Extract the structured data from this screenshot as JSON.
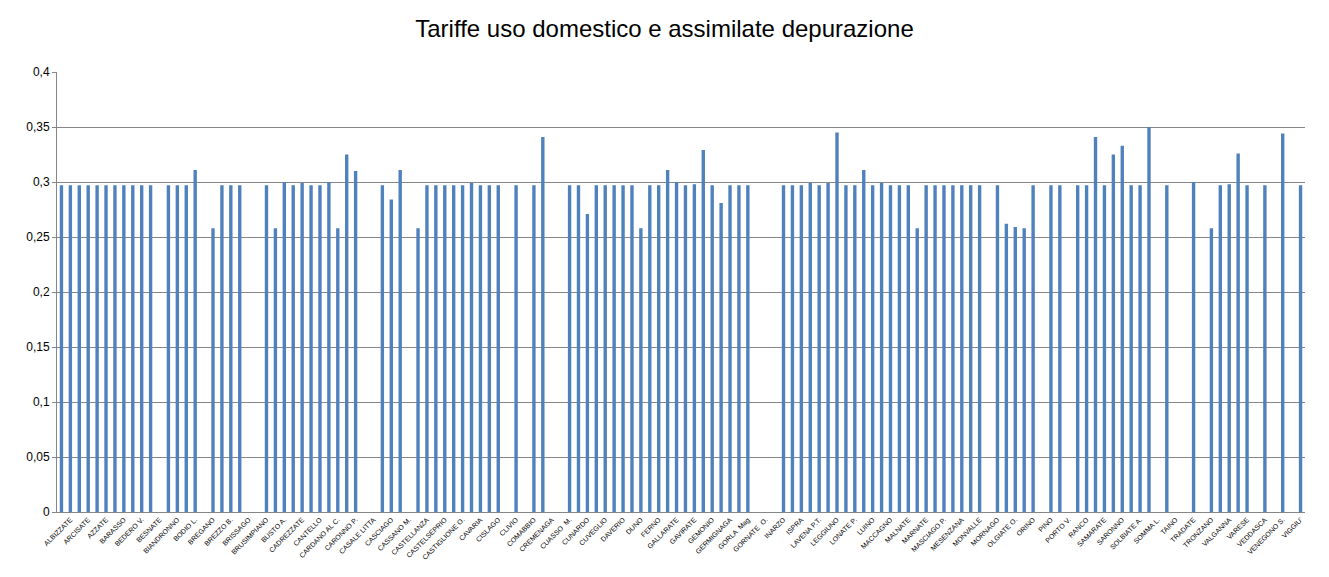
{
  "chart_data": {
    "type": "bar",
    "title": "Tariffe uso domestico e assimilate depurazione",
    "categories": [
      null,
      "ALBIZZATE",
      null,
      "ARCISATE",
      null,
      "AZZATE",
      null,
      "BARASSO",
      null,
      "BEDERO V.",
      null,
      "BESNATE",
      null,
      "BIANDRONNO",
      null,
      "BODIO L.",
      null,
      "BREGANO",
      null,
      "BREZZO B.",
      null,
      "BRISSAGO",
      null,
      "BRUSIMPIANO",
      null,
      "BUSTO A.",
      null,
      "CADREZZATE",
      null,
      "CANTELLO",
      null,
      "CARDANO AL C.",
      null,
      "CARONNO P.",
      null,
      "CASALE LITTA",
      null,
      "CASCIAGO",
      null,
      "CASSANO M.",
      null,
      "CASTELLANZA",
      null,
      "CASTELSEPRIO",
      null,
      "CASTIGLIONE O.",
      null,
      "CAVARIA",
      null,
      "CISLAGO",
      null,
      "CLIVIO",
      null,
      "COMABBIO",
      null,
      "CREMENAGA",
      null,
      "CUASSO  M.",
      null,
      "CUNARDO",
      null,
      "CUVEGLIO",
      null,
      "DAVERIO",
      null,
      "DUNO",
      null,
      "FERNO",
      null,
      "GALLARATE",
      null,
      "GAVIRATE",
      null,
      "GEMONIO",
      null,
      "GERMIGNAGA",
      null,
      "GORLA  Mag",
      null,
      "GORNATE  O.",
      null,
      "INARZO",
      null,
      "ISPRA",
      null,
      "LAVENA P.T.",
      null,
      "LEGGIUNO",
      null,
      "LONATE P.",
      null,
      "LUINO",
      null,
      "MACCAGNO",
      null,
      "MALNATE",
      null,
      "MARNATE",
      null,
      "MASCIAGO P.",
      null,
      "MESENZANA",
      null,
      "MONVALLE",
      null,
      "MORNAGO",
      null,
      "OLGIATE O.",
      null,
      "ORINO",
      null,
      "PINO",
      null,
      "PORTO V.",
      null,
      "RANCO",
      null,
      "SAMARATE",
      null,
      "SARONNO",
      null,
      "SOLBIATE A.",
      null,
      "SOMMA L.",
      null,
      "TAINO",
      null,
      "TRADATE",
      null,
      "TRONZANO",
      null,
      "VALGANNA",
      null,
      "VARESE",
      null,
      "VEDDASCA",
      null,
      "VENEGONO S.",
      null,
      "VIGGIU'"
    ],
    "values": [
      0.297,
      0.297,
      0.297,
      0.297,
      0.297,
      0.297,
      0.297,
      0.297,
      0.297,
      0.297,
      0.297,
      null,
      0.297,
      0.297,
      0.297,
      0.311,
      null,
      0.258,
      0.297,
      0.297,
      0.297,
      null,
      null,
      0.297,
      0.258,
      0.3,
      0.297,
      0.299,
      0.297,
      0.297,
      0.3,
      0.258,
      0.325,
      0.31,
      null,
      null,
      0.297,
      0.284,
      0.311,
      null,
      0.258,
      0.297,
      0.297,
      0.297,
      0.297,
      0.297,
      0.299,
      0.297,
      0.297,
      0.297,
      null,
      0.297,
      null,
      0.297,
      0.341,
      null,
      null,
      0.297,
      0.297,
      0.271,
      0.297,
      0.297,
      0.297,
      0.297,
      0.297,
      0.258,
      0.297,
      0.297,
      0.311,
      0.3,
      0.297,
      0.298,
      0.329,
      0.297,
      0.281,
      0.297,
      0.297,
      0.297,
      null,
      null,
      null,
      0.297,
      0.297,
      0.297,
      0.299,
      0.297,
      0.299,
      0.345,
      0.297,
      0.297,
      0.311,
      0.297,
      0.299,
      0.297,
      0.297,
      0.297,
      0.258,
      0.297,
      0.297,
      0.297,
      0.297,
      0.297,
      0.297,
      0.297,
      null,
      0.297,
      0.262,
      0.259,
      0.258,
      0.297,
      null,
      0.297,
      0.297,
      null,
      0.297,
      0.297,
      0.341,
      0.297,
      0.325,
      0.333,
      0.297,
      0.297,
      0.35,
      null,
      0.297,
      null,
      null,
      0.3,
      null,
      0.258,
      0.297,
      0.298,
      0.326,
      0.297,
      null,
      0.297,
      null,
      0.344,
      null,
      0.297
    ],
    "color": "#4f81bd",
    "ylim": [
      0,
      0.4
    ],
    "yticks": [
      0,
      {
        "value": 0.05,
        "label": "0,05"
      },
      {
        "value": 0.1,
        "label": "0,1"
      },
      {
        "value": 0.15,
        "label": "0,15"
      },
      {
        "value": 0.2,
        "label": "0,2"
      },
      {
        "value": 0.25,
        "label": "0,25"
      },
      {
        "value": 0.3,
        "label": "0,3"
      },
      {
        "value": 0.35,
        "label": "0,35"
      },
      {
        "value": 0.4,
        "label": "0,4"
      }
    ],
    "grid": true
  }
}
